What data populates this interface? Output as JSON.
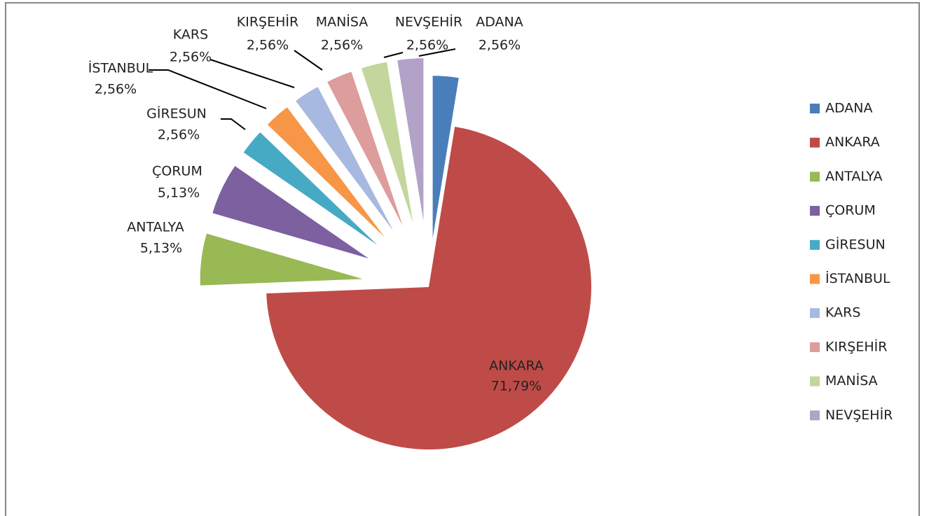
{
  "chart_data": {
    "type": "pie",
    "categories": [
      "ADANA",
      "ANKARA",
      "ANTALYA",
      "ÇORUM",
      "GİRESUN",
      "İSTANBUL",
      "KARS",
      "KIRŞEHİR",
      "MANİSA",
      "NEVŞEHİR"
    ],
    "values": [
      2.56,
      71.79,
      5.13,
      5.13,
      2.56,
      2.56,
      2.56,
      2.56,
      2.56,
      2.56
    ],
    "value_labels": [
      "2,56%",
      "71,79%",
      "5,13%",
      "5,13%",
      "2,56%",
      "2,56%",
      "2,56%",
      "2,56%",
      "2,56%",
      "2,56%"
    ],
    "colors": [
      "#4a7ebb",
      "#be4b48",
      "#98b954",
      "#7d60a0",
      "#46aac5",
      "#f79646",
      "#a7b9e0",
      "#dd9d9c",
      "#c3d69b",
      "#b3a2c7"
    ],
    "legend": "right"
  }
}
